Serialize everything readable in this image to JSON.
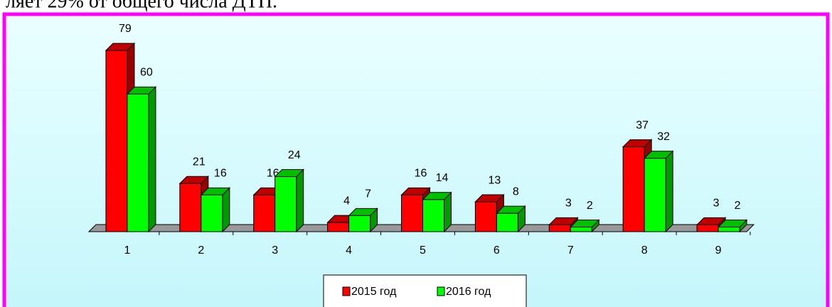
{
  "caption": "ляет 29% от общего числа ДТП.",
  "chart_data": {
    "type": "bar3d",
    "categories": [
      "1",
      "2",
      "3",
      "4",
      "5",
      "6",
      "7",
      "8",
      "9"
    ],
    "series": [
      {
        "name": "2015 год",
        "color": "#ff0000",
        "values": [
          79,
          21,
          16,
          4,
          16,
          13,
          3,
          37,
          3
        ]
      },
      {
        "name": "2016 год",
        "color": "#00ff00",
        "values": [
          60,
          16,
          24,
          7,
          14,
          8,
          2,
          32,
          2
        ]
      }
    ],
    "legend": "bottom"
  }
}
